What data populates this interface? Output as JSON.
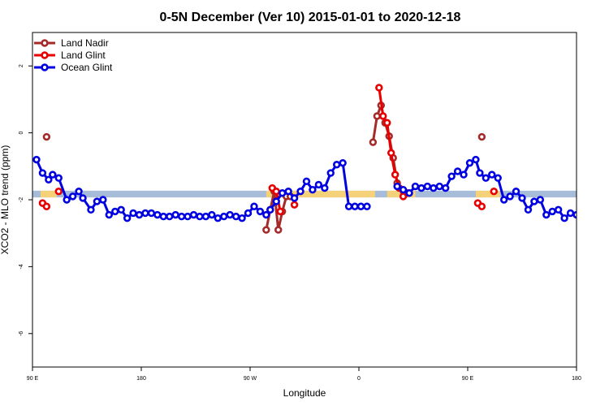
{
  "chart_data": {
    "type": "line",
    "title": "0-5N December (Ver 10)   2015-01-01 to 2020-12-18",
    "xlabel": "Longitude",
    "ylabel": "XCO2 - MLO trend (ppm)",
    "xlim": [
      0,
      270
    ],
    "ylim": [
      -7,
      3
    ],
    "x_ticks": [
      {
        "value": 0,
        "label": "90 E"
      },
      {
        "value": 54,
        "label": "180"
      },
      {
        "value": 108,
        "label": "90 W"
      },
      {
        "value": 162,
        "label": "0"
      },
      {
        "value": 216,
        "label": "90 E"
      },
      {
        "value": 270,
        "label": "180"
      }
    ],
    "y_ticks": [
      2,
      0,
      -2,
      -4,
      -6
    ],
    "grid": false,
    "legend_position": "top-left",
    "bands": [
      {
        "color": "#a6bcd8",
        "x_range": [
          0,
          270
        ],
        "y_range": [
          -1.93,
          -1.73
        ]
      },
      {
        "color": "#f5d27a",
        "x_range": [
          4,
          12
        ],
        "y_range": [
          -1.93,
          -1.73
        ]
      },
      {
        "color": "#f5d27a",
        "x_range": [
          116,
          170
        ],
        "y_range": [
          -1.93,
          -1.73
        ]
      },
      {
        "color": "#f5d27a",
        "x_range": [
          176,
          190
        ],
        "y_range": [
          -1.93,
          -1.73
        ]
      },
      {
        "color": "#f5d27a",
        "x_range": [
          220,
          232
        ],
        "y_range": [
          -1.93,
          -1.73
        ]
      }
    ],
    "series": [
      {
        "name": "Land Nadir",
        "color": "#a52a2a",
        "segments": [
          {
            "x": [
              7
            ],
            "y": [
              -0.12
            ]
          },
          {
            "x": [
              116,
              118,
              120,
              122,
              124,
              126,
              128
            ],
            "y": [
              -2.9,
              -2.3,
              -1.75,
              -2.9,
              -2.35,
              -1.9,
              -1.9
            ]
          },
          {
            "x": [
              169,
              171,
              173,
              175,
              177,
              179,
              181
            ],
            "y": [
              -0.28,
              0.5,
              0.82,
              0.3,
              -0.1,
              -0.75,
              -1.5
            ]
          },
          {
            "x": [
              223
            ],
            "y": [
              -0.12
            ]
          }
        ]
      },
      {
        "name": "Land Glint",
        "color": "#e80000",
        "segments": [
          {
            "x": [
              5,
              7
            ],
            "y": [
              -2.1,
              -2.2
            ]
          },
          {
            "x": [
              13
            ],
            "y": [
              -1.75
            ]
          },
          {
            "x": [
              119,
              121,
              123
            ],
            "y": [
              -1.65,
              -1.75,
              -2.35
            ]
          },
          {
            "x": [
              130
            ],
            "y": [
              -2.15
            ]
          },
          {
            "x": [
              172,
              174,
              176,
              178,
              180,
              182,
              184,
              186
            ],
            "y": [
              1.35,
              0.5,
              0.3,
              -0.6,
              -1.25,
              -1.65,
              -1.9,
              -1.8
            ]
          },
          {
            "x": [
              221,
              223
            ],
            "y": [
              -2.1,
              -2.2
            ]
          },
          {
            "x": [
              229
            ],
            "y": [
              -1.75
            ]
          }
        ]
      },
      {
        "name": "Ocean Glint",
        "color": "#0000e0",
        "segments": [
          {
            "x": [
              2,
              5,
              8,
              10,
              13,
              17,
              20,
              23,
              25,
              29,
              32,
              35,
              38,
              41,
              44,
              47,
              50,
              53,
              56,
              59,
              62,
              65,
              68,
              71,
              74,
              77,
              80,
              83,
              86,
              89,
              92,
              95,
              98,
              101,
              104,
              107,
              110,
              113,
              116,
              118,
              121,
              124,
              127,
              130,
              133,
              136,
              139,
              142,
              145,
              148,
              151,
              154,
              157,
              160,
              163,
              166
            ],
            "y": [
              -0.8,
              -1.2,
              -1.4,
              -1.25,
              -1.35,
              -2.0,
              -1.9,
              -1.75,
              -1.95,
              -2.3,
              -2.05,
              -2.0,
              -2.45,
              -2.35,
              -2.3,
              -2.55,
              -2.4,
              -2.45,
              -2.4,
              -2.4,
              -2.45,
              -2.5,
              -2.5,
              -2.45,
              -2.5,
              -2.5,
              -2.45,
              -2.5,
              -2.5,
              -2.45,
              -2.55,
              -2.5,
              -2.45,
              -2.5,
              -2.55,
              -2.4,
              -2.2,
              -2.35,
              -2.45,
              -2.3,
              -2.05,
              -1.8,
              -1.75,
              -1.95,
              -1.75,
              -1.45,
              -1.7,
              -1.55,
              -1.65,
              -1.2,
              -0.95,
              -0.9,
              -2.2,
              -2.2,
              -2.2,
              -2.2
            ]
          },
          {
            "x": [
              181,
              184,
              187,
              190,
              193,
              196,
              199,
              202,
              205,
              208,
              211,
              214,
              217,
              220,
              222,
              225,
              228,
              231,
              234,
              237,
              240,
              243,
              246,
              249,
              252,
              255,
              258,
              261,
              264,
              267,
              270
            ],
            "y": [
              -1.6,
              -1.7,
              -1.8,
              -1.6,
              -1.65,
              -1.6,
              -1.65,
              -1.6,
              -1.65,
              -1.3,
              -1.15,
              -1.25,
              -0.9,
              -0.8,
              -1.2,
              -1.35,
              -1.25,
              -1.35,
              -2.0,
              -1.9,
              -1.75,
              -1.95,
              -2.3,
              -2.05,
              -2.0,
              -2.45,
              -2.35,
              -2.3,
              -2.55,
              -2.4,
              -2.45
            ]
          }
        ]
      }
    ]
  }
}
